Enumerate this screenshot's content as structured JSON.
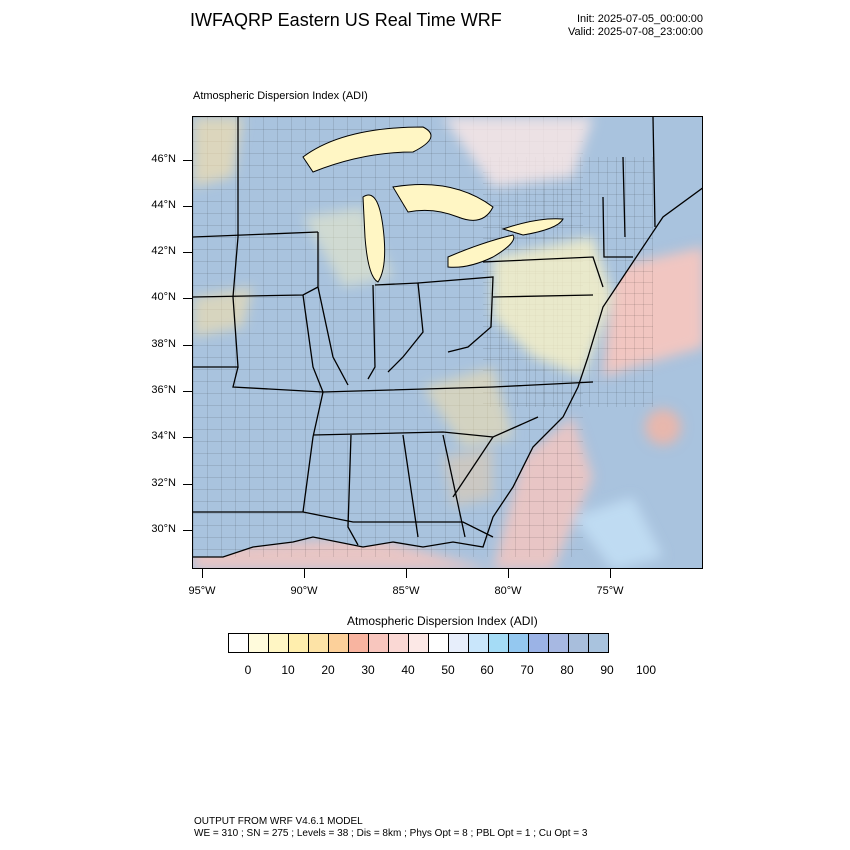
{
  "header": {
    "title": "IWFAQRP Eastern US Real Time WRF",
    "init": "Init: 2025-07-05_00:00:00",
    "valid": "Valid: 2025-07-08_23:00:00"
  },
  "plot": {
    "title": "Atmospheric Dispersion Index   (ADI)",
    "lat_labels": [
      "46°N",
      "44°N",
      "42°N",
      "40°N",
      "38°N",
      "36°N",
      "34°N",
      "32°N",
      "30°N"
    ],
    "lon_labels": [
      "95°W",
      "90°W",
      "85°W",
      "80°W",
      "75°W"
    ]
  },
  "colorbar": {
    "title": "Atmospheric Dispersion Index  (ADI)",
    "labels": [
      "0",
      "10",
      "20",
      "30",
      "40",
      "50",
      "60",
      "70",
      "80",
      "90",
      "100"
    ],
    "colors": [
      "#ffffff",
      "#fffbdc",
      "#fff6c4",
      "#ffeead",
      "#fde3a6",
      "#fcd09a",
      "#f8b4a0",
      "#f8c6be",
      "#fad8d4",
      "#fce8e6",
      "#ffffff",
      "#e7eefb",
      "#c9e6fb",
      "#a5dcf6",
      "#94c8f0",
      "#9bb3e6",
      "#a7b8e2",
      "#a8bedc",
      "#a9c3de"
    ],
    "color_meaning": {
      "low": "#fffbdc",
      "mid": "#f8b4a0",
      "high": "#a9c3de"
    }
  },
  "footer": {
    "line1": "OUTPUT FROM WRF V4.6.1 MODEL",
    "line2": "WE = 310 ; SN = 275 ; Levels = 38 ; Dis = 8km ; Phys Opt = 8 ; PBL Opt = 1 ; Cu Opt = 3"
  }
}
